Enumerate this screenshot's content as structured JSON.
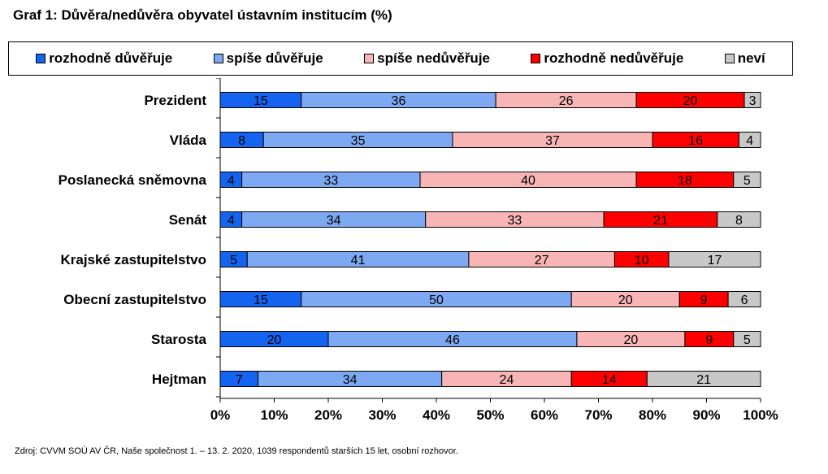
{
  "chart_data": {
    "type": "bar",
    "orientation": "horizontal",
    "stacked": "percent",
    "title": "Graf 1: Důvěra/nedůvěra obyvatel ústavním institucím (%)",
    "categories": [
      "Prezident",
      "Vláda",
      "Poslanecká sněmovna",
      "Senát",
      "Krajské zastupitelstvo",
      "Obecní zastupitelstvo",
      "Starosta",
      "Hejtman"
    ],
    "series": [
      {
        "name": "rozhodně důvěřuje",
        "color": "#1464f0",
        "values": [
          15,
          8,
          4,
          4,
          5,
          15,
          20,
          7
        ]
      },
      {
        "name": "spíše důvěřuje",
        "color": "#7da8f2",
        "values": [
          36,
          35,
          33,
          34,
          41,
          50,
          46,
          34
        ]
      },
      {
        "name": "spíše nedůvěřuje",
        "color": "#f7b5b5",
        "values": [
          26,
          37,
          40,
          33,
          27,
          20,
          20,
          24
        ]
      },
      {
        "name": "rozhodně nedůvěřuje",
        "color": "#ff0000",
        "values": [
          20,
          16,
          18,
          21,
          10,
          9,
          9,
          14
        ]
      },
      {
        "name": "neví",
        "color": "#c8c8c8",
        "values": [
          3,
          4,
          5,
          8,
          17,
          6,
          5,
          21
        ]
      }
    ],
    "x_ticks": [
      "0%",
      "10%",
      "20%",
      "30%",
      "40%",
      "50%",
      "60%",
      "70%",
      "80%",
      "90%",
      "100%"
    ],
    "xlim": [
      0,
      100
    ],
    "grid": false,
    "legend_position": "top"
  },
  "source_note": "Zdroj: CVVM SOÚ AV ČR, Naše společnost 1. – 13. 2. 2020, 1039 respondentů starších 15 let, osobní rozhovor."
}
